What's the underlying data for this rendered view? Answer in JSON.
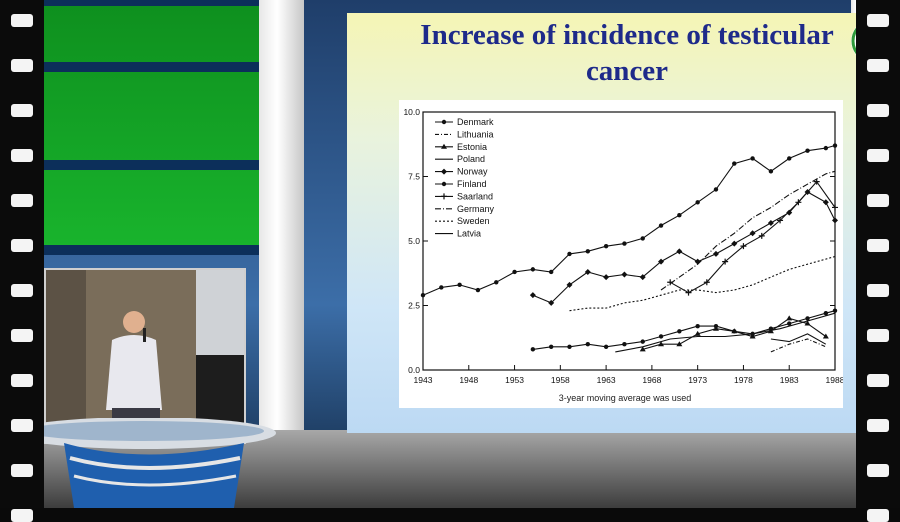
{
  "slide": {
    "title": "Increase of incidence of testicular cancer"
  },
  "logo": {
    "icon": "leaf-e-logo",
    "color": "#2e9a3a"
  },
  "chart_data": {
    "type": "line",
    "title": "",
    "xlabel": "3-year moving average was used",
    "ylabel": "",
    "xlim": [
      1943,
      1988
    ],
    "ylim": [
      0,
      10
    ],
    "x_ticks": [
      "1943",
      "1948",
      "1953",
      "1958",
      "1963",
      "1968",
      "1973",
      "1978",
      "1983",
      "1988"
    ],
    "y_ticks": [
      "0.0",
      "2.5",
      "5.0",
      "7.5",
      "10.0"
    ],
    "legend_position": "top-left",
    "grid": false,
    "series": [
      {
        "name": "Denmark",
        "marker": "o",
        "dash": "",
        "x": [
          1943,
          1945,
          1947,
          1949,
          1951,
          1953,
          1955,
          1957,
          1959,
          1961,
          1963,
          1965,
          1967,
          1969,
          1971,
          1973,
          1975,
          1977,
          1979,
          1981,
          1983,
          1985,
          1987,
          1988
        ],
        "values": [
          2.9,
          3.2,
          3.3,
          3.1,
          3.4,
          3.8,
          3.9,
          3.8,
          4.5,
          4.6,
          4.8,
          4.9,
          5.1,
          5.6,
          6.0,
          6.5,
          7.0,
          8.0,
          8.2,
          7.7,
          8.2,
          8.5,
          8.6,
          8.7
        ]
      },
      {
        "name": "Lithuania",
        "marker": "",
        "dash": "4 2 1 2",
        "x": [
          1981,
          1983,
          1985,
          1987
        ],
        "values": [
          0.7,
          1.0,
          1.2,
          0.9
        ]
      },
      {
        "name": "Estonia",
        "marker": "^",
        "dash": "",
        "x": [
          1967,
          1969,
          1971,
          1973,
          1975,
          1977,
          1979,
          1981,
          1983,
          1985,
          1987
        ],
        "values": [
          0.8,
          1.0,
          1.0,
          1.4,
          1.6,
          1.5,
          1.3,
          1.5,
          2.0,
          1.8,
          1.3
        ]
      },
      {
        "name": "Poland",
        "marker": "",
        "dash": "",
        "x": [
          1964,
          1967,
          1970,
          1973,
          1976,
          1979,
          1982,
          1985,
          1988
        ],
        "values": [
          0.7,
          0.9,
          1.2,
          1.3,
          1.3,
          1.4,
          1.6,
          1.9,
          2.2
        ]
      },
      {
        "name": "Norway",
        "marker": "D",
        "dash": "",
        "x": [
          1955,
          1957,
          1959,
          1961,
          1963,
          1965,
          1967,
          1969,
          1971,
          1973,
          1975,
          1977,
          1979,
          1981,
          1983,
          1985,
          1987,
          1988
        ],
        "values": [
          2.9,
          2.6,
          3.3,
          3.8,
          3.6,
          3.7,
          3.6,
          4.2,
          4.6,
          4.2,
          4.5,
          4.9,
          5.3,
          5.7,
          6.1,
          6.9,
          6.5,
          5.8
        ]
      },
      {
        "name": "Finland",
        "marker": "o",
        "dash": "",
        "x": [
          1955,
          1957,
          1959,
          1961,
          1963,
          1965,
          1967,
          1969,
          1971,
          1973,
          1975,
          1977,
          1979,
          1981,
          1983,
          1985,
          1987,
          1988
        ],
        "values": [
          0.8,
          0.9,
          0.9,
          1.0,
          0.9,
          1.0,
          1.1,
          1.3,
          1.5,
          1.7,
          1.7,
          1.5,
          1.4,
          1.6,
          1.8,
          2.0,
          2.2,
          2.3
        ]
      },
      {
        "name": "Saarland",
        "marker": "+",
        "dash": "",
        "x": [
          1970,
          1972,
          1974,
          1976,
          1978,
          1980,
          1982,
          1984,
          1986,
          1988
        ],
        "values": [
          3.4,
          3.0,
          3.4,
          4.2,
          4.8,
          5.2,
          5.8,
          6.5,
          7.3,
          6.3
        ]
      },
      {
        "name": "Germany",
        "marker": "",
        "dash": "6 2 1 2",
        "x": [
          1969,
          1971,
          1973,
          1975,
          1977,
          1979,
          1981,
          1983,
          1985,
          1987,
          1988
        ],
        "values": [
          3.1,
          3.6,
          4.1,
          4.8,
          5.3,
          5.9,
          6.3,
          6.8,
          7.2,
          7.6,
          7.7
        ]
      },
      {
        "name": "Sweden",
        "marker": "",
        "dash": "2 2",
        "x": [
          1959,
          1961,
          1963,
          1965,
          1967,
          1969,
          1971,
          1973,
          1975,
          1977,
          1979,
          1981,
          1983,
          1985,
          1987,
          1988
        ],
        "values": [
          2.3,
          2.4,
          2.4,
          2.6,
          2.7,
          2.9,
          3.1,
          3.1,
          3.0,
          3.1,
          3.3,
          3.6,
          3.9,
          4.1,
          4.3,
          4.4
        ]
      },
      {
        "name": "Latvia",
        "marker": "",
        "dash": "",
        "x": [
          1981,
          1983,
          1985,
          1987
        ],
        "values": [
          1.2,
          1.1,
          1.4,
          1.0
        ]
      }
    ]
  }
}
